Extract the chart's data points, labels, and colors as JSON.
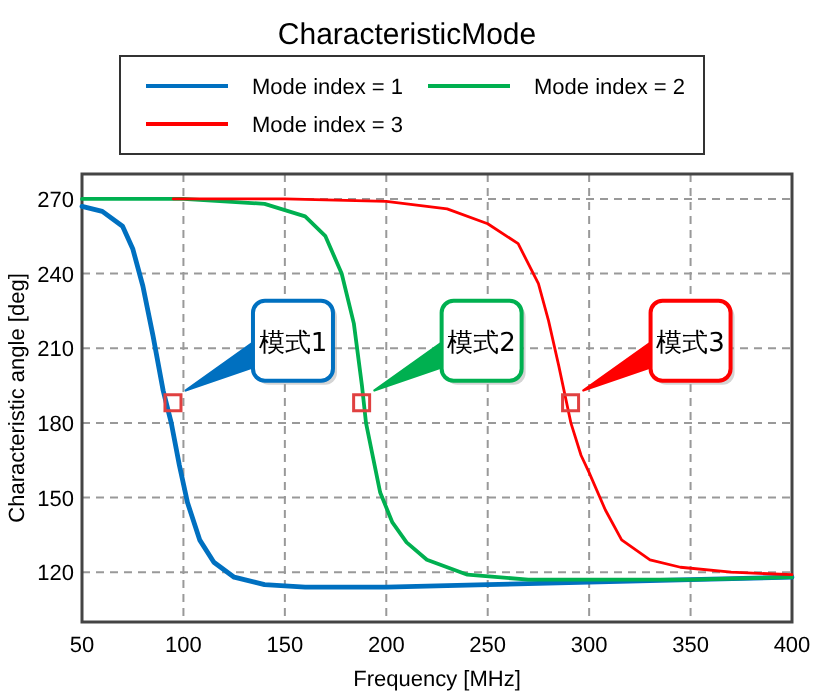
{
  "chart_data": {
    "type": "line",
    "title": "CharacteristicMode",
    "xlabel": "Frequency [MHz]",
    "ylabel": "Characteristic angle [deg]",
    "xlim": [
      50,
      400
    ],
    "xticks": [
      50,
      100,
      150,
      200,
      250,
      300,
      350,
      400
    ],
    "ylim": [
      100,
      280
    ],
    "yticks": [
      120,
      150,
      180,
      210,
      240,
      270
    ],
    "grid": true,
    "legend": "top",
    "line_style": "solid",
    "series": [
      {
        "name": "Mode index = 1",
        "color": "#0070c0",
        "x": [
          50,
          60,
          70,
          75,
          80,
          85,
          90,
          94,
          98,
          102,
          108,
          115,
          125,
          140,
          160,
          200,
          250,
          300,
          350,
          400
        ],
        "values": [
          267,
          265,
          259,
          250,
          235,
          215,
          193,
          180,
          163,
          148,
          133,
          124,
          118,
          115,
          114,
          114,
          115,
          116,
          117,
          118
        ]
      },
      {
        "name": "Mode index = 2",
        "color": "#00b050",
        "x": [
          50,
          100,
          140,
          160,
          170,
          178,
          184,
          188,
          190,
          193,
          197,
          203,
          210,
          220,
          240,
          270,
          300,
          350,
          400
        ],
        "values": [
          270,
          270,
          268,
          263,
          255,
          240,
          220,
          195,
          180,
          168,
          152,
          140,
          132,
          125,
          119,
          117,
          117,
          117,
          118
        ]
      },
      {
        "name": "Mode index = 3",
        "color": "#ff0000",
        "x": [
          95,
          150,
          200,
          230,
          250,
          265,
          275,
          280,
          285,
          291,
          296,
          300,
          308,
          316,
          330,
          345,
          370,
          400
        ],
        "values": [
          270,
          270,
          269,
          266,
          260,
          252,
          236,
          221,
          203,
          180,
          167,
          160,
          145,
          133,
          125,
          122,
          120,
          119
        ]
      }
    ],
    "annotations": [
      {
        "text": "模式1",
        "x": 154,
        "y": 213
      },
      {
        "text": "模式2",
        "x": 247,
        "y": 213
      },
      {
        "text": "模式3",
        "x": 350,
        "y": 213
      }
    ]
  }
}
